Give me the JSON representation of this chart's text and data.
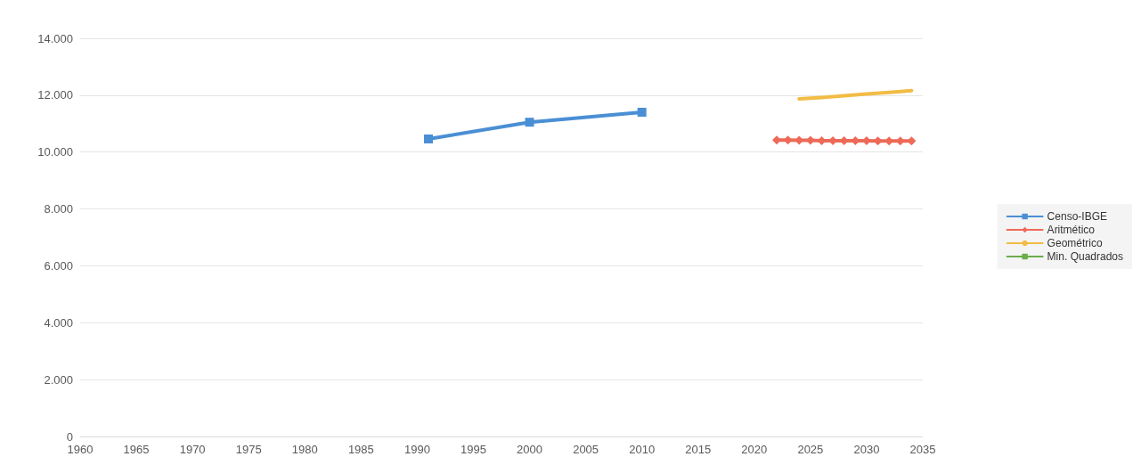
{
  "chart_data": {
    "type": "line",
    "xlim": [
      1960,
      2035
    ],
    "xticks": [
      1960,
      1965,
      1970,
      1975,
      1980,
      1985,
      1990,
      1995,
      2000,
      2005,
      2010,
      2015,
      2020,
      2025,
      2030,
      2035
    ],
    "ylim": [
      0,
      14000
    ],
    "yticks": [
      0,
      {
        "value": 2000,
        "label": "2.000"
      },
      {
        "value": 4000,
        "label": "4.000"
      },
      {
        "value": 6000,
        "label": "6.000"
      },
      {
        "value": 8000,
        "label": "8.000"
      },
      {
        "value": 10000,
        "label": "10.000"
      },
      {
        "value": 12000,
        "label": "12.000"
      },
      {
        "value": 14000,
        "label": "14.000"
      }
    ],
    "grid": "y",
    "legend": "right",
    "series": [
      {
        "name": "Censo-IBGE",
        "color": "#4a8fd4",
        "marker": "square",
        "x": [
          1991,
          2000,
          2010
        ],
        "values": [
          10460,
          11050,
          11400
        ]
      },
      {
        "name": "Aritmético",
        "color": "#ee6a58",
        "marker": "diamond",
        "x": [
          2022,
          2023,
          2024,
          2025,
          2026,
          2027,
          2028,
          2029,
          2030,
          2031,
          2032,
          2033,
          2034
        ],
        "values": [
          10420,
          10420,
          10410,
          10410,
          10400,
          10400,
          10400,
          10400,
          10400,
          10390,
          10390,
          10390,
          10390
        ]
      },
      {
        "name": "Geométrico",
        "color": "#f2bc45",
        "marker": "none",
        "x": [
          2024,
          2026,
          2028,
          2030,
          2032,
          2034
        ],
        "values": [
          11870,
          11920,
          11980,
          12040,
          12100,
          12160
        ]
      },
      {
        "name": "Min. Quadrados",
        "color": "#6aad4a",
        "marker": "square"
      }
    ]
  }
}
